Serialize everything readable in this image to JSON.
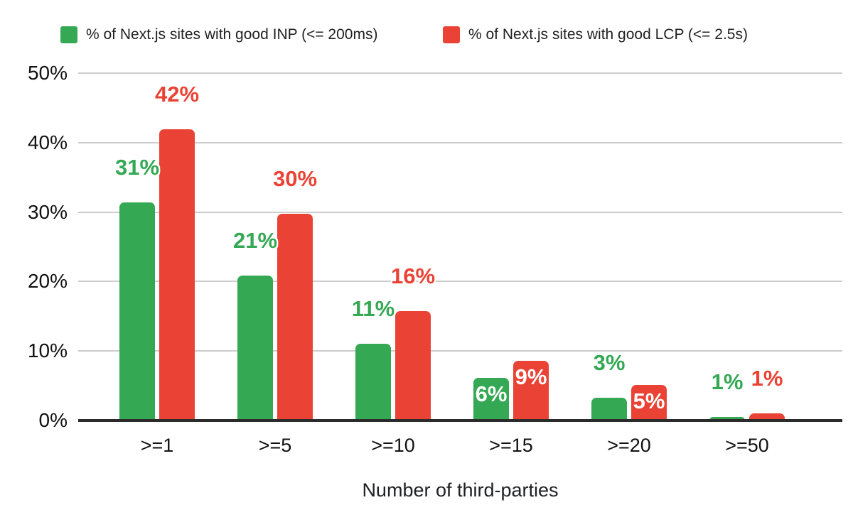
{
  "chart_data": {
    "type": "bar",
    "title": "",
    "categories": [
      ">=1",
      ">=5",
      ">=10",
      ">=15",
      ">=20",
      ">=50"
    ],
    "series": [
      {
        "id": "inp",
        "name": "% of Next.js sites with good INP (<= 200ms)",
        "color": "#34a853",
        "values": [
          31.4,
          20.9,
          11.0,
          6.1,
          3.3,
          0.5
        ],
        "data_labels": [
          "31%",
          "21%",
          "11%",
          "6%",
          "3%",
          "1%"
        ],
        "label_placement": [
          "above",
          "above",
          "above",
          "inside",
          "above",
          "above"
        ]
      },
      {
        "id": "lcp",
        "name": "% of Next.js sites with good LCP (<= 2.5s)",
        "color": "#ea4335",
        "values": [
          41.9,
          29.8,
          15.7,
          8.6,
          5.1,
          1.0
        ],
        "data_labels": [
          "42%",
          "30%",
          "16%",
          "9%",
          "5%",
          "1%"
        ],
        "label_placement": [
          "above",
          "above",
          "above",
          "inside",
          "inside",
          "above"
        ]
      }
    ],
    "xlabel": "Number of third-parties",
    "ylabel": "",
    "ylim": [
      0,
      50
    ],
    "yticks": [
      "0%",
      "10%",
      "20%",
      "30%",
      "40%",
      "50%"
    ],
    "grid": true,
    "legend_position": "top",
    "inside_label_color": "#ffffff"
  }
}
